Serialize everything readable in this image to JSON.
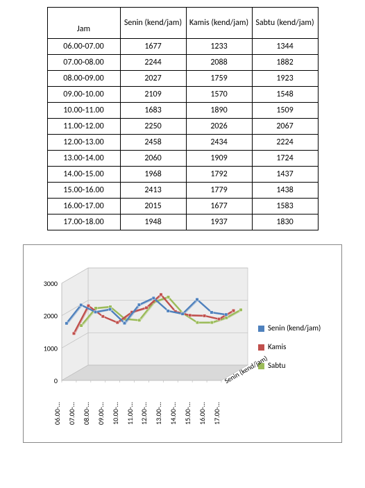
{
  "table": {
    "columns": [
      "Jam",
      "Senin (kend/jam)",
      "Kamis (kend/jam)",
      "Sabtu (kend/jam)"
    ],
    "rows": [
      [
        "06.00-07.00",
        "1677",
        "1233",
        "1344"
      ],
      [
        "07.00-08.00",
        "2244",
        "2088",
        "1882"
      ],
      [
        "08.00-09.00",
        "2027",
        "1759",
        "1923"
      ],
      [
        "09.00-10.00",
        "2109",
        "1570",
        "1548"
      ],
      [
        "10.00-11.00",
        "1683",
        "1890",
        "1509"
      ],
      [
        "11.00-12.00",
        "2250",
        "2026",
        "2067"
      ],
      [
        "12.00-13.00",
        "2458",
        "2434",
        "2224"
      ],
      [
        "13.00-14.00",
        "2060",
        "1909",
        "1724"
      ],
      [
        "14.00-15.00",
        "1968",
        "1792",
        "1437"
      ],
      [
        "15.00-16.00",
        "2413",
        "1779",
        "1438"
      ],
      [
        "16.00-17.00",
        "2015",
        "1677",
        "1583"
      ],
      [
        "17.00-18.00",
        "1948",
        "1937",
        "1830"
      ]
    ]
  },
  "chart": {
    "type": "3d-line",
    "x_categories": [
      "06.00-…",
      "07.00-…",
      "08.00-…",
      "09.00-…",
      "10.00-…",
      "11.00-…",
      "12.00-…",
      "13.00-…",
      "14.00-…",
      "15.00-…",
      "16.00-…",
      "17.00-…"
    ],
    "y_ticks": [
      0,
      1000,
      2000,
      3000
    ],
    "ylim": [
      0,
      3000
    ],
    "series": [
      {
        "name": "Senin (kend/jam)",
        "color": "#4f81bd",
        "values": [
          1677,
          2244,
          2027,
          2109,
          1683,
          2250,
          2458,
          2060,
          1968,
          2413,
          2015,
          1948
        ]
      },
      {
        "name": "Kamis",
        "color": "#c0504d",
        "values": [
          1233,
          2088,
          1759,
          1570,
          1890,
          2026,
          2434,
          1909,
          1792,
          1779,
          1677,
          1937
        ]
      },
      {
        "name": "Sabtu",
        "color": "#9bbb59",
        "values": [
          1344,
          1882,
          1923,
          1548,
          1509,
          2067,
          2224,
          1724,
          1437,
          1438,
          1583,
          1830
        ]
      }
    ],
    "depth_label": "Senin (kend/jam)",
    "legend_items": [
      "Senin (kend/jam)",
      "Kamis",
      "Sabtu"
    ],
    "background_color": "#ffffff",
    "floor_color": "#d9d9d9",
    "wall_color": "#ededed",
    "grid_color": "#bfbfbf",
    "axis_label_fontsize": 10,
    "tick_fontsize": 10
  }
}
